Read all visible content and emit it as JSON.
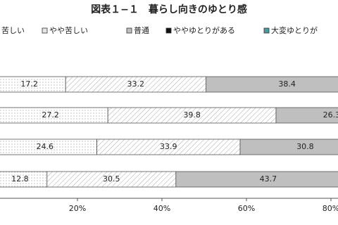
{
  "chart_data": {
    "type": "stacked-barh",
    "title": "図表１−１　暮らし向きのゆとり感",
    "categories": [
      null,
      null,
      null,
      null
    ],
    "series": [
      {
        "name": "苦しい",
        "color": "#ffffff",
        "values": [
          17.2,
          27.2,
          24.6,
          12.8
        ]
      },
      {
        "name": "やや苦しい",
        "color": "#e6e6e6",
        "values": [
          33.2,
          39.8,
          33.9,
          30.5
        ]
      },
      {
        "name": "普通",
        "color": "#bfbfbf",
        "values": [
          38.4,
          26.3,
          30.8,
          43.7
        ]
      },
      {
        "name": "ややゆとりがある",
        "color": "#111111",
        "values": [
          null,
          null,
          null,
          null
        ]
      },
      {
        "name": "大変ゆとりが",
        "color": "#4a9aa0",
        "values": [
          null,
          null,
          null,
          null
        ]
      }
    ],
    "xlim": [
      0,
      100
    ],
    "xticks": [
      {
        "value": 20,
        "label": "20%"
      },
      {
        "value": 40,
        "label": "40%"
      },
      {
        "value": 60,
        "label": "60%"
      },
      {
        "value": 80,
        "label": "80%"
      }
    ]
  }
}
